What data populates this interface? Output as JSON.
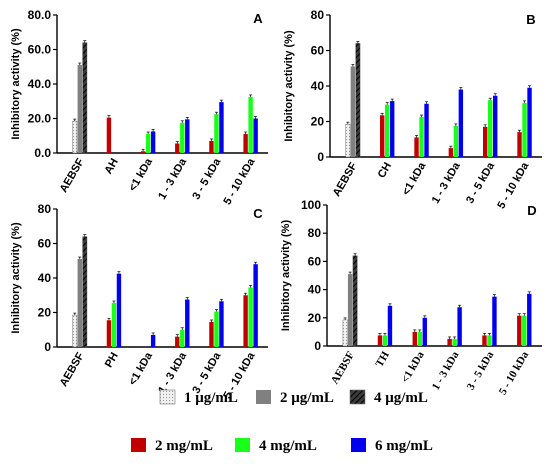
{
  "chart_data": [
    {
      "type": "bar",
      "panel_label": "A",
      "ylabel": "Inhibitory activity (%)",
      "ylim": [
        0,
        80
      ],
      "yticks": [
        "0.0",
        "20.0",
        "40.0",
        "60.0",
        "80.0"
      ],
      "categories": [
        "AEBSF",
        "AH",
        "<1 kDa",
        "1 - 3 kDa",
        "3 - 5 kDa",
        "5 - 10 kDa"
      ],
      "series": [
        {
          "name": "1 μg/mL",
          "values": [
            18.5,
            null,
            null,
            null,
            null,
            null
          ]
        },
        {
          "name": "2 μg/mL",
          "values": [
            51,
            null,
            null,
            null,
            null,
            null
          ]
        },
        {
          "name": "4 μg/mL",
          "values": [
            64,
            null,
            null,
            null,
            null,
            null
          ]
        },
        {
          "name": "2 mg/mL",
          "values": [
            null,
            20.5,
            1,
            5.5,
            7,
            11
          ]
        },
        {
          "name": "4 mg/mL",
          "values": [
            null,
            null,
            11,
            17.5,
            22.5,
            32.5
          ]
        },
        {
          "name": "6 mg/mL",
          "values": [
            null,
            null,
            12.5,
            19.5,
            29.5,
            20
          ]
        }
      ]
    },
    {
      "type": "bar",
      "panel_label": "B",
      "ylabel": "Inhibitory activity (%)",
      "ylim": [
        0,
        80
      ],
      "yticks": [
        "0",
        "20",
        "40",
        "60",
        "80"
      ],
      "categories": [
        "AEBSF",
        "CH",
        "<1 kDa",
        "1 - 3 kDa",
        "3 - 5 kDa",
        "5 - 10 kDa"
      ],
      "series": [
        {
          "name": "1 μg/mL",
          "values": [
            18.5,
            null,
            null,
            null,
            null,
            null
          ]
        },
        {
          "name": "2 μg/mL",
          "values": [
            51,
            null,
            null,
            null,
            null,
            null
          ]
        },
        {
          "name": "4 μg/mL",
          "values": [
            64,
            null,
            null,
            null,
            null,
            null
          ]
        },
        {
          "name": "2 mg/mL",
          "values": [
            null,
            23.5,
            11,
            5,
            17,
            14
          ]
        },
        {
          "name": "4 mg/mL",
          "values": [
            null,
            29.5,
            22.5,
            17.5,
            32,
            30.5
          ]
        },
        {
          "name": "6 mg/mL",
          "values": [
            null,
            31.5,
            30,
            38,
            34.5,
            39
          ]
        }
      ]
    },
    {
      "type": "bar",
      "panel_label": "C",
      "ylabel": "Inhibitory activity (%)",
      "ylim": [
        0,
        80
      ],
      "yticks": [
        "0",
        "20",
        "40",
        "60",
        "80"
      ],
      "categories": [
        "AEBSF",
        "PH",
        "<1 kDa",
        "1 - 3 kDa",
        "3 - 5 kDa",
        "5 - 10 kDa"
      ],
      "series": [
        {
          "name": "1 μg/mL",
          "values": [
            18.5,
            null,
            null,
            null,
            null,
            null
          ]
        },
        {
          "name": "2 μg/mL",
          "values": [
            51,
            null,
            null,
            null,
            null,
            null
          ]
        },
        {
          "name": "4 μg/mL",
          "values": [
            64,
            null,
            null,
            null,
            null,
            null
          ]
        },
        {
          "name": "2 mg/mL",
          "values": [
            null,
            15.5,
            null,
            6,
            14.5,
            30
          ]
        },
        {
          "name": "4 mg/mL",
          "values": [
            null,
            25.5,
            null,
            10,
            20.5,
            34.5
          ]
        },
        {
          "name": "6 mg/mL",
          "values": [
            null,
            42.5,
            7,
            27.5,
            26.5,
            48
          ]
        }
      ]
    },
    {
      "type": "bar",
      "panel_label": "D",
      "ylabel": "Inhibitory activity (%)",
      "ylim": [
        0,
        100
      ],
      "yticks": [
        "0",
        "20",
        "40",
        "60",
        "80",
        "100"
      ],
      "categories": [
        "AEBSF",
        "TH",
        "<1 kDa",
        "1 - 3 kDa",
        "3 - 5 kDa",
        "5 - 10 kDa"
      ],
      "series": [
        {
          "name": "1 μg/mL",
          "values": [
            18.5,
            null,
            null,
            null,
            null,
            null
          ]
        },
        {
          "name": "2 μg/mL",
          "values": [
            51,
            null,
            null,
            null,
            null,
            null
          ]
        },
        {
          "name": "4 μg/mL",
          "values": [
            64,
            null,
            null,
            null,
            null,
            null
          ]
        },
        {
          "name": "2 mg/mL",
          "values": [
            null,
            7.5,
            10,
            5,
            7.5,
            21.5
          ]
        },
        {
          "name": "4 mg/mL",
          "values": [
            null,
            7.5,
            10,
            5,
            7.5,
            21.5
          ]
        },
        {
          "name": "6 mg/mL",
          "values": [
            null,
            28.5,
            20,
            27.5,
            35,
            37
          ]
        }
      ]
    }
  ],
  "legend": {
    "position": "bottom",
    "items": [
      {
        "label": "1 μg/mL",
        "style": "dotted",
        "color": "#e0e0e0"
      },
      {
        "label": "2 μg/mL",
        "style": "solid",
        "color": "#808080"
      },
      {
        "label": "4 μg/mL",
        "style": "hatched",
        "color": "#2a2a2a"
      },
      {
        "label": "2 mg/mL",
        "style": "solid",
        "color": "#c00000"
      },
      {
        "label": "4 mg/mL",
        "style": "solid",
        "color": "#19ff19"
      },
      {
        "label": "6 mg/mL",
        "style": "solid",
        "color": "#0000ee"
      }
    ]
  }
}
